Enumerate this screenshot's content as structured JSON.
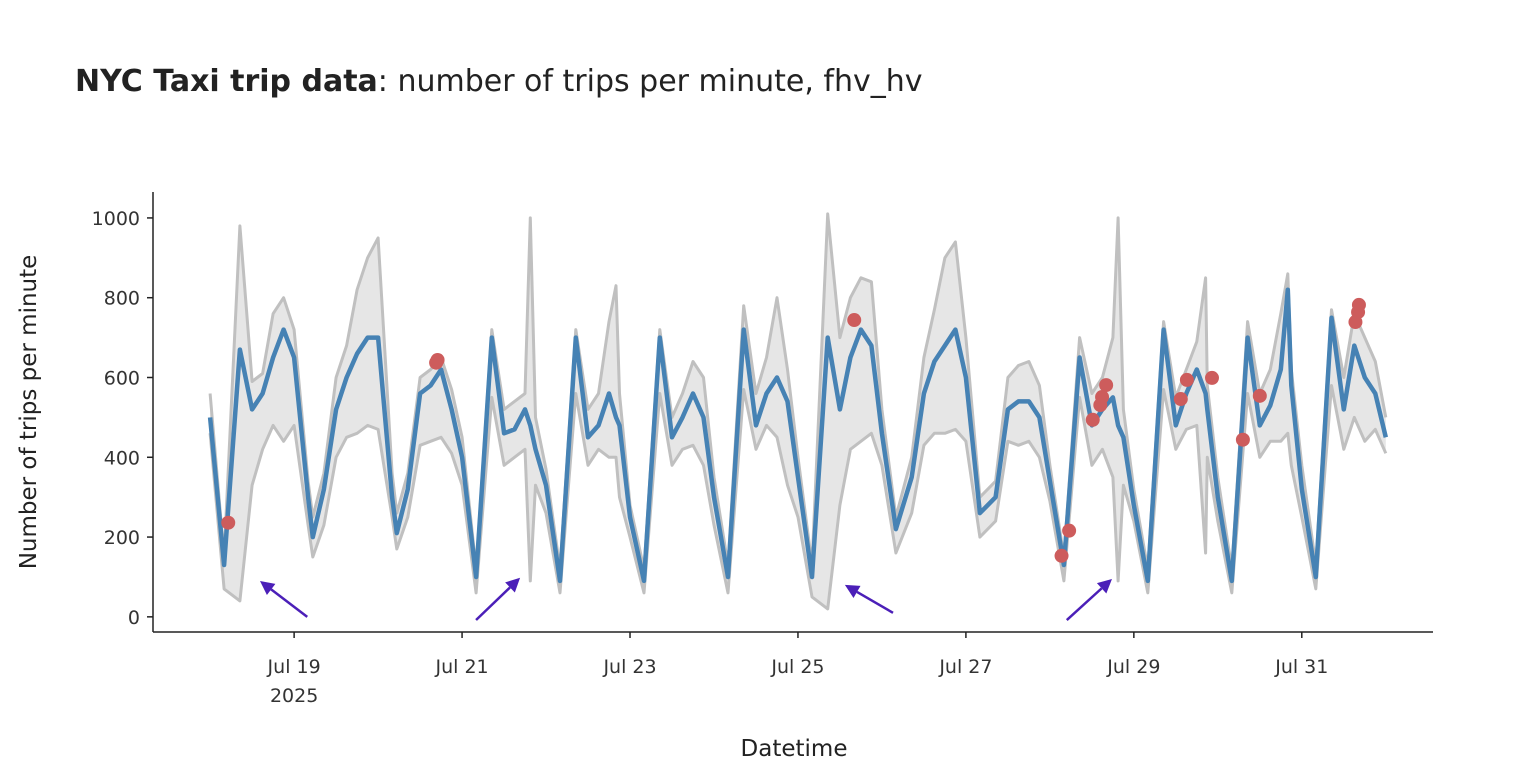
{
  "chart_data": {
    "type": "line",
    "title_bold": "NYC Taxi trip data",
    "title_rest": ": number of trips per minute, fhv_hv",
    "xlabel": "Datetime",
    "ylabel": "Number of trips per minute",
    "xlim": [
      "2025-07-17T07:40",
      "2025-08-01T13:30"
    ],
    "ylim": [
      -38,
      1065
    ],
    "yticks": [
      0,
      200,
      400,
      600,
      800,
      1000
    ],
    "xticks": [
      {
        "date": "2025-07-19T00:00",
        "label": "Jul 19",
        "sub": "2025"
      },
      {
        "date": "2025-07-21T00:00",
        "label": "Jul 21"
      },
      {
        "date": "2025-07-23T00:00",
        "label": "Jul 23"
      },
      {
        "date": "2025-07-25T00:00",
        "label": "Jul 25"
      },
      {
        "date": "2025-07-27T00:00",
        "label": "Jul 27"
      },
      {
        "date": "2025-07-29T00:00",
        "label": "Jul 29"
      },
      {
        "date": "2025-07-31T00:00",
        "label": "Jul 31"
      }
    ],
    "grid": false,
    "colors": {
      "series": "#4682b4",
      "band_fill": "#e6e6e6",
      "band_line": "#c0c0c0",
      "anomaly": "#cd5c5c",
      "arrow": "#4b1fb8"
    },
    "series_columns": [
      "datetime",
      "value",
      "lower",
      "upper"
    ],
    "series": [
      [
        "2025-07-18T00:00",
        500,
        460,
        560
      ],
      [
        "2025-07-18T04:00",
        130,
        70,
        150
      ],
      [
        "2025-07-18T08:30",
        670,
        40,
        980
      ],
      [
        "2025-07-18T12:00",
        520,
        330,
        590
      ],
      [
        "2025-07-18T15:00",
        560,
        420,
        610
      ],
      [
        "2025-07-18T18:00",
        650,
        480,
        760
      ],
      [
        "2025-07-18T21:00",
        720,
        440,
        800
      ],
      [
        "2025-07-19T00:00",
        650,
        480,
        720
      ],
      [
        "2025-07-19T04:00",
        300,
        230,
        340
      ],
      [
        "2025-07-19T05:20",
        200,
        150,
        250
      ],
      [
        "2025-07-19T08:30",
        320,
        230,
        360
      ],
      [
        "2025-07-19T12:00",
        520,
        400,
        600
      ],
      [
        "2025-07-19T15:00",
        600,
        450,
        680
      ],
      [
        "2025-07-19T18:00",
        660,
        460,
        820
      ],
      [
        "2025-07-19T21:00",
        700,
        480,
        900
      ],
      [
        "2025-07-20T00:00",
        700,
        470,
        950
      ],
      [
        "2025-07-20T04:00",
        300,
        250,
        360
      ],
      [
        "2025-07-20T05:20",
        210,
        170,
        260
      ],
      [
        "2025-07-20T08:30",
        320,
        250,
        360
      ],
      [
        "2025-07-20T12:00",
        560,
        430,
        600
      ],
      [
        "2025-07-20T15:00",
        580,
        440,
        620
      ],
      [
        "2025-07-20T18:00",
        620,
        450,
        650
      ],
      [
        "2025-07-20T21:00",
        520,
        410,
        570
      ],
      [
        "2025-07-21T00:00",
        400,
        330,
        450
      ],
      [
        "2025-07-21T04:00",
        100,
        60,
        120
      ],
      [
        "2025-07-21T08:30",
        700,
        550,
        720
      ],
      [
        "2025-07-21T12:00",
        460,
        380,
        520
      ],
      [
        "2025-07-21T15:00",
        470,
        400,
        540
      ],
      [
        "2025-07-21T18:00",
        520,
        420,
        560
      ],
      [
        "2025-07-21T19:30",
        480,
        90,
        1000
      ],
      [
        "2025-07-21T21:00",
        420,
        330,
        500
      ],
      [
        "2025-07-22T00:00",
        330,
        260,
        370
      ],
      [
        "2025-07-22T04:00",
        90,
        60,
        120
      ],
      [
        "2025-07-22T08:30",
        700,
        560,
        720
      ],
      [
        "2025-07-22T12:00",
        450,
        380,
        520
      ],
      [
        "2025-07-22T15:00",
        480,
        420,
        560
      ],
      [
        "2025-07-22T18:00",
        560,
        400,
        740
      ],
      [
        "2025-07-22T20:00",
        500,
        400,
        830
      ],
      [
        "2025-07-22T21:00",
        480,
        300,
        560
      ],
      [
        "2025-07-23T00:00",
        250,
        200,
        280
      ],
      [
        "2025-07-23T04:00",
        90,
        60,
        120
      ],
      [
        "2025-07-23T08:30",
        700,
        560,
        720
      ],
      [
        "2025-07-23T12:00",
        450,
        380,
        500
      ],
      [
        "2025-07-23T15:00",
        500,
        420,
        560
      ],
      [
        "2025-07-23T18:00",
        560,
        430,
        640
      ],
      [
        "2025-07-23T21:00",
        500,
        380,
        600
      ],
      [
        "2025-07-24T00:00",
        300,
        230,
        350
      ],
      [
        "2025-07-24T04:00",
        100,
        60,
        130
      ],
      [
        "2025-07-24T08:30",
        720,
        570,
        780
      ],
      [
        "2025-07-24T12:00",
        480,
        420,
        560
      ],
      [
        "2025-07-24T15:00",
        560,
        480,
        650
      ],
      [
        "2025-07-24T18:00",
        600,
        450,
        800
      ],
      [
        "2025-07-24T21:00",
        540,
        330,
        620
      ],
      [
        "2025-07-25T00:00",
        350,
        250,
        400
      ],
      [
        "2025-07-25T04:00",
        100,
        50,
        130
      ],
      [
        "2025-07-25T08:30",
        700,
        20,
        1010
      ],
      [
        "2025-07-25T12:00",
        520,
        280,
        700
      ],
      [
        "2025-07-25T15:00",
        650,
        420,
        800
      ],
      [
        "2025-07-25T18:00",
        720,
        440,
        850
      ],
      [
        "2025-07-25T21:00",
        680,
        460,
        840
      ],
      [
        "2025-07-26T00:00",
        460,
        380,
        520
      ],
      [
        "2025-07-26T04:00",
        220,
        160,
        250
      ],
      [
        "2025-07-26T08:30",
        350,
        260,
        400
      ],
      [
        "2025-07-26T12:00",
        560,
        430,
        650
      ],
      [
        "2025-07-26T15:00",
        640,
        460,
        770
      ],
      [
        "2025-07-26T18:00",
        680,
        460,
        900
      ],
      [
        "2025-07-26T21:00",
        720,
        470,
        940
      ],
      [
        "2025-07-27T00:00",
        600,
        440,
        700
      ],
      [
        "2025-07-27T04:00",
        260,
        200,
        300
      ],
      [
        "2025-07-27T08:30",
        300,
        240,
        340
      ],
      [
        "2025-07-27T12:00",
        520,
        440,
        600
      ],
      [
        "2025-07-27T15:00",
        540,
        430,
        630
      ],
      [
        "2025-07-27T18:00",
        540,
        440,
        640
      ],
      [
        "2025-07-27T21:00",
        500,
        400,
        580
      ],
      [
        "2025-07-28T00:00",
        340,
        290,
        380
      ],
      [
        "2025-07-28T04:00",
        130,
        90,
        150
      ],
      [
        "2025-07-28T08:30",
        650,
        550,
        700
      ],
      [
        "2025-07-28T12:00",
        480,
        380,
        560
      ],
      [
        "2025-07-28T15:00",
        520,
        420,
        600
      ],
      [
        "2025-07-28T18:00",
        550,
        350,
        700
      ],
      [
        "2025-07-28T19:30",
        480,
        90,
        1000
      ],
      [
        "2025-07-28T21:00",
        450,
        330,
        520
      ],
      [
        "2025-07-29T00:00",
        280,
        240,
        320
      ],
      [
        "2025-07-29T04:00",
        90,
        60,
        120
      ],
      [
        "2025-07-29T08:30",
        720,
        570,
        740
      ],
      [
        "2025-07-29T12:00",
        480,
        420,
        550
      ],
      [
        "2025-07-29T15:00",
        560,
        470,
        620
      ],
      [
        "2025-07-29T18:00",
        620,
        480,
        690
      ],
      [
        "2025-07-29T20:30",
        560,
        160,
        850
      ],
      [
        "2025-07-29T21:00",
        520,
        400,
        580
      ],
      [
        "2025-07-30T00:00",
        300,
        240,
        350
      ],
      [
        "2025-07-30T04:00",
        90,
        60,
        120
      ],
      [
        "2025-07-30T08:30",
        700,
        560,
        740
      ],
      [
        "2025-07-30T12:00",
        480,
        400,
        560
      ],
      [
        "2025-07-30T15:00",
        530,
        440,
        620
      ],
      [
        "2025-07-30T18:00",
        620,
        440,
        760
      ],
      [
        "2025-07-30T20:00",
        820,
        460,
        860
      ],
      [
        "2025-07-30T21:00",
        580,
        380,
        620
      ],
      [
        "2025-07-31T00:00",
        320,
        250,
        380
      ],
      [
        "2025-07-31T04:00",
        100,
        70,
        130
      ],
      [
        "2025-07-31T08:30",
        750,
        580,
        770
      ],
      [
        "2025-07-31T12:00",
        520,
        420,
        600
      ],
      [
        "2025-07-31T15:00",
        680,
        500,
        760
      ],
      [
        "2025-07-31T18:00",
        600,
        440,
        700
      ],
      [
        "2025-07-31T21:00",
        560,
        470,
        640
      ],
      [
        "2025-08-01T00:00",
        450,
        410,
        500
      ]
    ],
    "anomalies": [
      [
        "2025-07-18T05:10",
        236
      ],
      [
        "2025-07-20T16:35",
        637
      ],
      [
        "2025-07-20T17:00",
        644
      ],
      [
        "2025-07-25T16:05",
        744
      ],
      [
        "2025-07-28T03:20",
        153
      ],
      [
        "2025-07-28T05:30",
        216
      ],
      [
        "2025-07-28T12:15",
        494
      ],
      [
        "2025-07-28T14:25",
        531
      ],
      [
        "2025-07-28T14:55",
        551
      ],
      [
        "2025-07-28T16:05",
        581
      ],
      [
        "2025-07-29T13:25",
        546
      ],
      [
        "2025-07-29T15:10",
        594
      ],
      [
        "2025-07-29T22:20",
        599
      ],
      [
        "2025-07-30T07:10",
        444
      ],
      [
        "2025-07-30T12:00",
        554
      ],
      [
        "2025-07-31T15:20",
        739
      ],
      [
        "2025-07-31T16:05",
        764
      ],
      [
        "2025-07-31T16:20",
        782
      ]
    ],
    "annotations_arrows": [
      {
        "head": [
          "2025-07-18T14:15",
          90
        ],
        "tail": [
          "2025-07-19T03:45",
          0
        ]
      },
      {
        "head": [
          "2025-07-21T16:35",
          98
        ],
        "tail": [
          "2025-07-21T04:00",
          -8
        ]
      },
      {
        "head": [
          "2025-07-25T13:25",
          80
        ],
        "tail": [
          "2025-07-26T03:10",
          10
        ]
      },
      {
        "head": [
          "2025-07-28T17:45",
          95
        ],
        "tail": [
          "2025-07-28T04:50",
          -8
        ]
      }
    ]
  }
}
